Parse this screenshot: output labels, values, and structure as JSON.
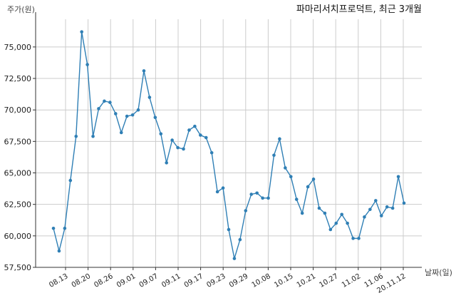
{
  "chart_data": {
    "type": "line",
    "title": "파마리서치프로덕트, 최근 3개월",
    "xlabel": "날짜(일)",
    "ylabel": "주가(원)",
    "ylim": [
      57500,
      77200
    ],
    "y_ticks": [
      57500,
      60000,
      62500,
      65000,
      67500,
      70000,
      72500,
      75000
    ],
    "y_tick_labels": [
      "57,500",
      "60,000",
      "62,500",
      "65,000",
      "67,500",
      "70,000",
      "72,500",
      "75,000"
    ],
    "x_tick_labels": [
      "08.13",
      "08.20",
      "08.26",
      "09.01",
      "09.07",
      "09.11",
      "09.17",
      "09.23",
      "09.29",
      "10.08",
      "10.15",
      "10.21",
      "10.27",
      "11.02",
      "11.06",
      "20.11.12"
    ],
    "grid": true,
    "colors": {
      "line": "#2f7fb5",
      "grid": "#cccccc"
    },
    "series": [
      {
        "values": [
          60600,
          58800,
          60600,
          64400,
          67900,
          76200,
          73600,
          67900,
          70100,
          70700,
          70600,
          69700,
          68200,
          69500,
          69600,
          70000,
          73100,
          71000,
          69400,
          68100,
          65800,
          67600,
          67000,
          66900,
          68400,
          68700,
          68000,
          67800,
          66600,
          63500,
          63800,
          60500,
          58200,
          59700,
          62000,
          63300,
          63400,
          63000,
          63000,
          66400,
          67700,
          65400,
          64700,
          62900,
          61800,
          63900,
          64500,
          62200,
          61800,
          60500,
          61000,
          61700,
          61000,
          59800,
          59800,
          61500,
          62100,
          62800,
          61600,
          62300,
          62200,
          64700,
          62600
        ]
      }
    ]
  }
}
